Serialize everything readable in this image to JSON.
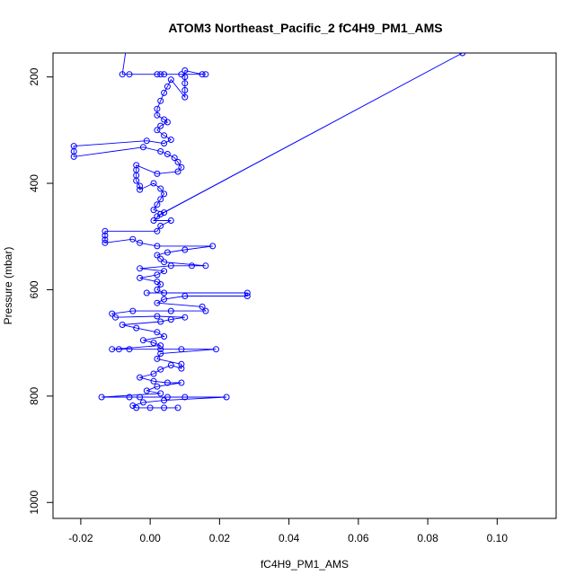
{
  "chart_data": {
    "type": "scatter",
    "title": "ATOM3 Northeast_Pacific_2 fC4H9_PM1_AMS",
    "xlabel": "fC4H9_PM1_AMS",
    "ylabel": "Pressure (mbar)",
    "xlim": [
      -0.028,
      0.117
    ],
    "ylim": [
      1030,
      155
    ],
    "y_reversed": true,
    "x_ticks": [
      -0.02,
      0.0,
      0.02,
      0.04,
      0.06,
      0.08,
      0.1
    ],
    "x_tick_labels": [
      "-0.02",
      "0.00",
      "0.02",
      "0.04",
      "0.06",
      "0.08",
      "0.10"
    ],
    "y_ticks": [
      200,
      400,
      600,
      800,
      1000
    ],
    "y_tick_labels": [
      "200",
      "400",
      "600",
      "800",
      "1000"
    ],
    "grid": false,
    "series": [
      {
        "color": "#0000ff",
        "marker": "open-circle",
        "connected": true,
        "points": [
          [
            -0.007,
            150
          ],
          [
            -0.008,
            195
          ],
          [
            -0.006,
            195
          ],
          [
            0.003,
            195
          ],
          [
            0.002,
            195
          ],
          [
            0.004,
            195
          ],
          [
            0.009,
            195
          ],
          [
            0.016,
            195
          ],
          [
            0.015,
            195
          ],
          [
            0.01,
            188
          ],
          [
            0.01,
            200
          ],
          [
            0.01,
            212
          ],
          [
            0.01,
            225
          ],
          [
            0.01,
            238
          ],
          [
            0.006,
            205
          ],
          [
            0.005,
            218
          ],
          [
            0.004,
            230
          ],
          [
            0.003,
            245
          ],
          [
            0.002,
            260
          ],
          [
            0.002,
            272
          ],
          [
            0.004,
            280
          ],
          [
            0.005,
            285
          ],
          [
            0.003,
            292
          ],
          [
            0.002,
            300
          ],
          [
            0.004,
            310
          ],
          [
            0.006,
            318
          ],
          [
            0.004,
            325
          ],
          [
            -0.001,
            320
          ],
          [
            -0.022,
            330
          ],
          [
            -0.022,
            340
          ],
          [
            -0.022,
            350
          ],
          [
            -0.002,
            332
          ],
          [
            0.003,
            340
          ],
          [
            0.005,
            345
          ],
          [
            0.007,
            352
          ],
          [
            0.008,
            360
          ],
          [
            0.009,
            370
          ],
          [
            0.008,
            378
          ],
          [
            0.002,
            382
          ],
          [
            -0.004,
            366
          ],
          [
            -0.004,
            375
          ],
          [
            -0.004,
            385
          ],
          [
            -0.004,
            395
          ],
          [
            -0.003,
            405
          ],
          [
            -0.003,
            412
          ],
          [
            0.001,
            400
          ],
          [
            0.003,
            410
          ],
          [
            0.004,
            420
          ],
          [
            0.003,
            430
          ],
          [
            0.002,
            440
          ],
          [
            0.001,
            450
          ],
          [
            0.004,
            455
          ],
          [
            0.002,
            462
          ],
          [
            0.09,
            155
          ],
          [
            0.003,
            458
          ],
          [
            0.001,
            470
          ],
          [
            0.006,
            470
          ],
          [
            0.003,
            480
          ],
          [
            0.002,
            490
          ],
          [
            -0.013,
            490
          ],
          [
            -0.013,
            498
          ],
          [
            -0.013,
            506
          ],
          [
            -0.013,
            512
          ],
          [
            -0.005,
            505
          ],
          [
            -0.003,
            512
          ],
          [
            0.002,
            518
          ],
          [
            0.018,
            518
          ],
          [
            0.01,
            525
          ],
          [
            0.005,
            530
          ],
          [
            0.002,
            535
          ],
          [
            0.003,
            542
          ],
          [
            0.004,
            548
          ],
          [
            0.016,
            555
          ],
          [
            0.012,
            555
          ],
          [
            0.006,
            555
          ],
          [
            -0.003,
            560
          ],
          [
            0.004,
            565
          ],
          [
            0.002,
            572
          ],
          [
            -0.003,
            578
          ],
          [
            0.002,
            585
          ],
          [
            0.003,
            590
          ],
          [
            0.002,
            600
          ],
          [
            0.004,
            606
          ],
          [
            -0.001,
            606
          ],
          [
            0.028,
            606
          ],
          [
            0.028,
            612
          ],
          [
            0.01,
            612
          ],
          [
            0.004,
            618
          ],
          [
            0.002,
            625
          ],
          [
            0.015,
            632
          ],
          [
            0.016,
            640
          ],
          [
            0.006,
            640
          ],
          [
            -0.005,
            640
          ],
          [
            -0.011,
            645
          ],
          [
            -0.01,
            652
          ],
          [
            0.002,
            650
          ],
          [
            0.01,
            652
          ],
          [
            0.006,
            656
          ],
          [
            0.003,
            660
          ],
          [
            -0.008,
            666
          ],
          [
            -0.004,
            672
          ],
          [
            0.002,
            680
          ],
          [
            0.004,
            688
          ],
          [
            -0.002,
            695
          ],
          [
            0.001,
            700
          ],
          [
            0.003,
            705
          ],
          [
            -0.011,
            712
          ],
          [
            -0.009,
            712
          ],
          [
            -0.006,
            712
          ],
          [
            0.003,
            712
          ],
          [
            0.009,
            712
          ],
          [
            0.019,
            712
          ],
          [
            0.003,
            720
          ],
          [
            0.002,
            730
          ],
          [
            0.009,
            740
          ],
          [
            0.009,
            748
          ],
          [
            0.006,
            742
          ],
          [
            0.003,
            750
          ],
          [
            0.001,
            758
          ],
          [
            -0.003,
            765
          ],
          [
            0.001,
            772
          ],
          [
            0.005,
            775
          ],
          [
            0.009,
            775
          ],
          [
            0.002,
            782
          ],
          [
            -0.001,
            790
          ],
          [
            0.003,
            795
          ],
          [
            -0.014,
            802
          ],
          [
            -0.006,
            802
          ],
          [
            -0.003,
            802
          ],
          [
            0.005,
            802
          ],
          [
            0.01,
            802
          ],
          [
            0.022,
            802
          ],
          [
            0.004,
            808
          ],
          [
            -0.002,
            812
          ],
          [
            -0.005,
            818
          ],
          [
            -0.004,
            822
          ],
          [
            0.0,
            822
          ],
          [
            0.004,
            822
          ],
          [
            0.008,
            822
          ]
        ]
      }
    ]
  }
}
